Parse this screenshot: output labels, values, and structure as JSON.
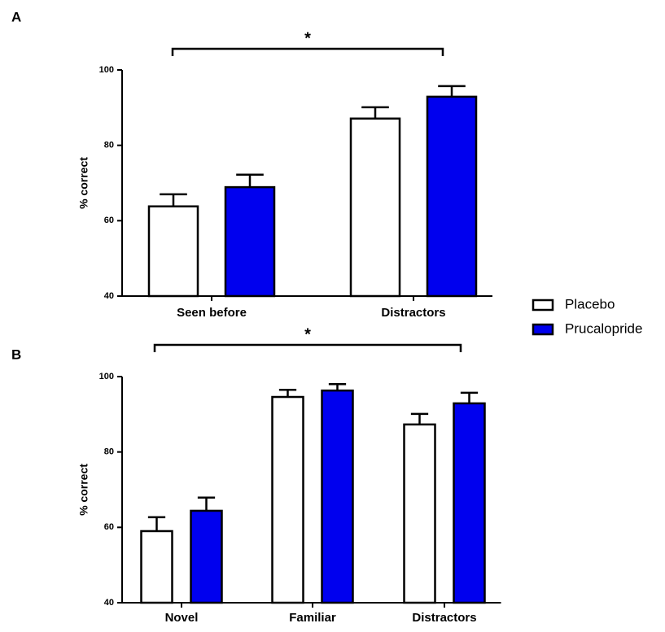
{
  "chart_data": [
    {
      "type": "bar",
      "panel_label": "A",
      "annotation": "*",
      "ylabel": "% correct",
      "categories": [
        "Seen before",
        "Distractors"
      ],
      "series": [
        {
          "name": "Placebo",
          "color": "#ffffff",
          "values": [
            63.8,
            87.1
          ],
          "errors": [
            3.2,
            3.0
          ]
        },
        {
          "name": "Prucalopride",
          "color": "#0000ee",
          "values": [
            68.9,
            92.9
          ],
          "errors": [
            3.3,
            2.8
          ]
        }
      ],
      "ylim": [
        40,
        100
      ],
      "yticks": [
        40,
        60,
        80,
        100
      ]
    },
    {
      "type": "bar",
      "panel_label": "B",
      "annotation": "*",
      "ylabel": "% correct",
      "categories": [
        "Novel",
        "Familiar",
        "Distractors"
      ],
      "series": [
        {
          "name": "Placebo",
          "color": "#ffffff",
          "values": [
            59.0,
            94.6,
            87.3
          ],
          "errors": [
            3.7,
            1.9,
            2.8
          ]
        },
        {
          "name": "Prucalopride",
          "color": "#0000ee",
          "values": [
            64.4,
            96.3,
            92.9
          ],
          "errors": [
            3.5,
            1.7,
            2.8
          ]
        }
      ],
      "ylim": [
        40,
        100
      ],
      "yticks": [
        40,
        60,
        80,
        100
      ]
    }
  ]
}
